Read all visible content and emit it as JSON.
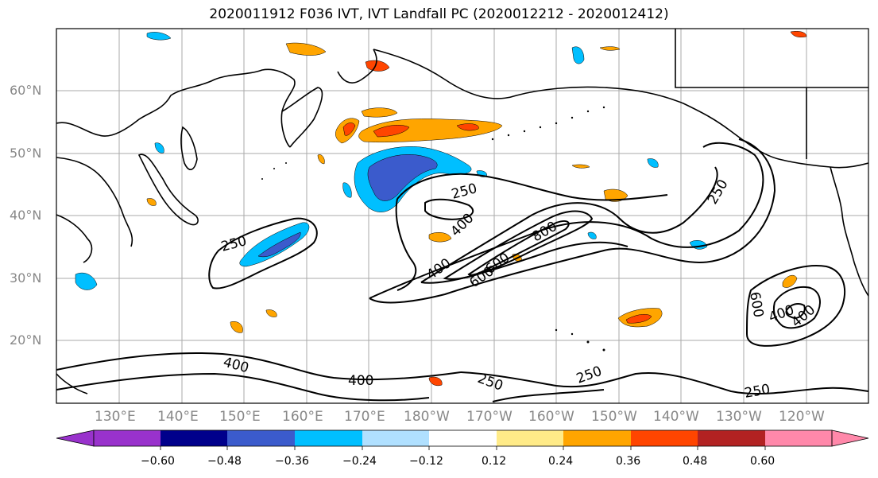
{
  "title": "2020011912 F036 IVT, IVT Landfall PC (2020012212 - 2020012412)",
  "map": {
    "projection": "equirectangular",
    "lon_range": [
      120,
      250
    ],
    "lat_range": [
      10,
      70
    ],
    "lat_labels": [
      "20°N",
      "30°N",
      "40°N",
      "50°N",
      "60°N"
    ],
    "lon_labels": [
      "130°E",
      "140°E",
      "150°E",
      "160°E",
      "170°E",
      "180°W",
      "170°W",
      "160°W",
      "150°W",
      "140°W",
      "130°W",
      "120°W"
    ]
  },
  "contour_labels": [
    "250",
    "250",
    "400",
    "800",
    "400",
    "600",
    "600",
    "250",
    "400",
    "400",
    "250",
    "250",
    "250",
    "600",
    "400",
    "400"
  ],
  "colorbar": {
    "ticks": [
      "−0.60",
      "−0.48",
      "−0.36",
      "−0.24",
      "−0.12",
      "0.12",
      "0.24",
      "0.36",
      "0.48",
      "0.60"
    ],
    "colors": [
      "#9932cc",
      "#00008b",
      "#3b5bcc",
      "#00bfff",
      "#b0e0ff",
      "#ffffff",
      "#ffeb88",
      "#ffa500",
      "#ff4500",
      "#b22222",
      "#ff88aa"
    ]
  }
}
